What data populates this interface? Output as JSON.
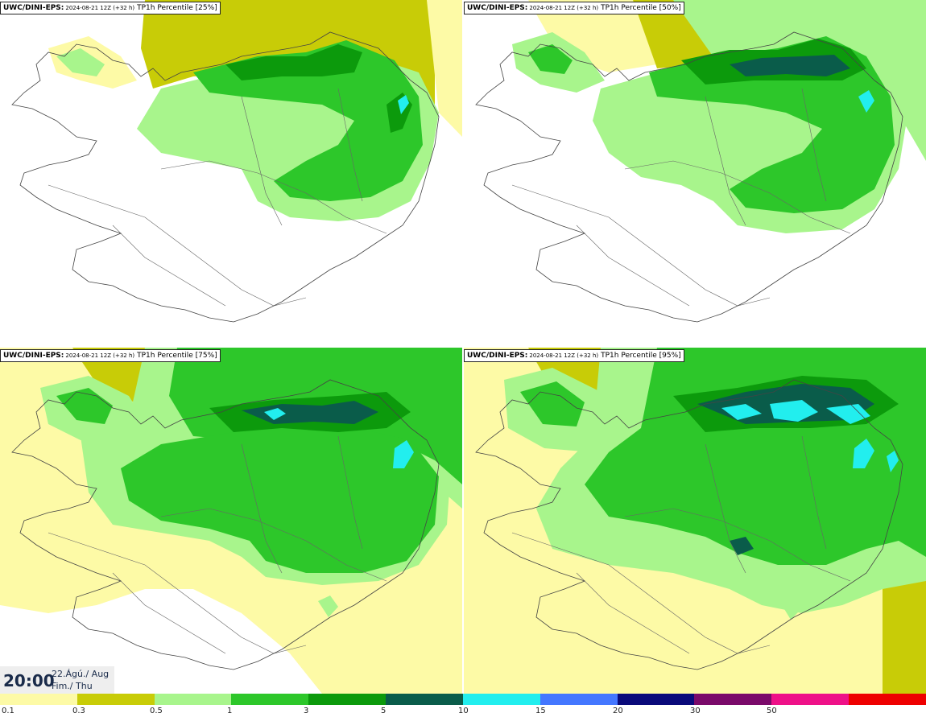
{
  "panels": [
    {
      "model": "UWC/DINI-EPS:",
      "run": "2024-08-21 12Z (+32 h)",
      "product": "TP1h Percentile [25%]",
      "level": 1
    },
    {
      "model": "UWC/DINI-EPS:",
      "run": "2024-08-21 12Z (+32 h)",
      "product": "TP1h Percentile [50%]",
      "level": 2
    },
    {
      "model": "UWC/DINI-EPS:",
      "run": "2024-08-21 12Z (+32 h)",
      "product": "TP1h Percentile [75%]",
      "level": 3
    },
    {
      "model": "UWC/DINI-EPS:",
      "run": "2024-08-21 12Z (+32 h)",
      "product": "TP1h Percentile [95%]",
      "level": 4
    }
  ],
  "valid_time": {
    "time": "20:00",
    "date_line1": "22.Ágú./ Aug",
    "date_line2": "Fim./ Thu"
  },
  "legend": {
    "colors": [
      "#fdfaa6",
      "#c8cc07",
      "#a8f58c",
      "#2dc72a",
      "#0c9a0c",
      "#0a5c4a",
      "#22eeee",
      "#4477ff",
      "#0a0a7a",
      "#7a0a6a",
      "#ee1188",
      "#ee0000"
    ],
    "labels": [
      "0.1",
      "0.3",
      "0.5",
      "1",
      "3",
      "5",
      "10",
      "15",
      "20",
      "30",
      "50"
    ]
  }
}
